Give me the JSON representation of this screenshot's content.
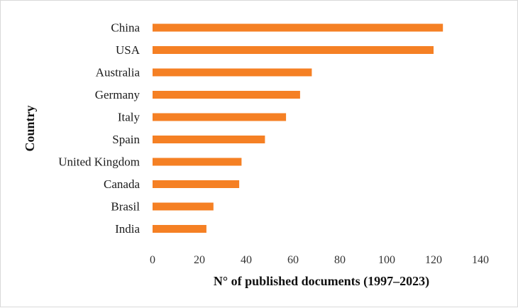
{
  "chart_data": {
    "type": "bar",
    "orientation": "horizontal",
    "categories": [
      "China",
      "USA",
      "Australia",
      "Germany",
      "Italy",
      "Spain",
      "United Kingdom",
      "Canada",
      "Brasil",
      "India"
    ],
    "series": [
      {
        "values": [
          124,
          120,
          68,
          63,
          57,
          48,
          38,
          37,
          26,
          23
        ]
      }
    ],
    "xlabel": "N° of published documents (1997–2023)",
    "ylabel": "Country",
    "xlim": [
      0,
      140
    ],
    "xticks": [
      "0",
      "20",
      "40",
      "60",
      "80",
      "100",
      "120",
      "140"
    ],
    "grid": false,
    "legend": "none",
    "bar_color": "#f58024"
  }
}
